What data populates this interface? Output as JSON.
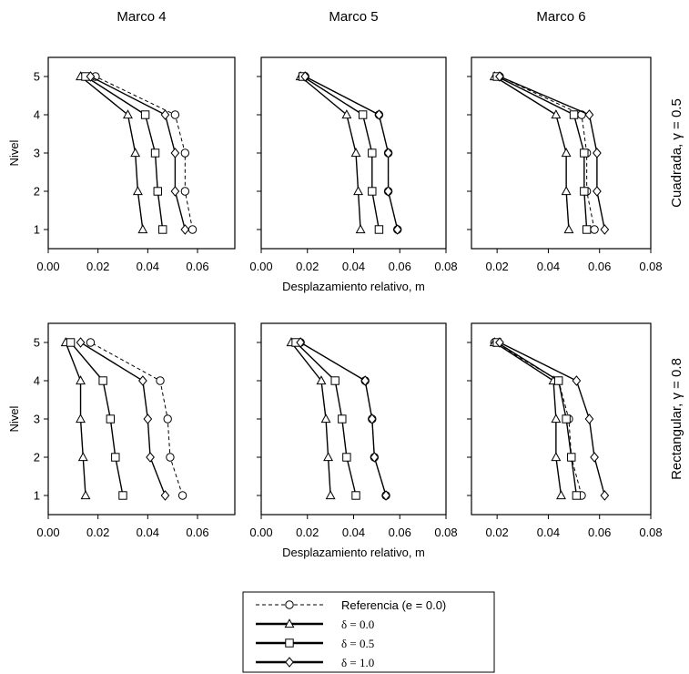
{
  "colors": {
    "line": "#000000",
    "marker_fill": "#ffffff",
    "background": "#ffffff"
  },
  "chart_data": {
    "type": "line",
    "column_titles": [
      "Marco 4",
      "Marco 5",
      "Marco 6"
    ],
    "row_labels": [
      "Cuadrada, γ = 0.5",
      "Rectangular, γ = 0.8"
    ],
    "ylabel": "Nivel",
    "xlabel": "Desplazamiento relativo, m",
    "y_ticks": [
      "1",
      "2",
      "3",
      "4",
      "5"
    ],
    "ylim": [
      0.5,
      5.5
    ],
    "grid": false,
    "legend_position": "bottom-center",
    "series_styles": [
      {
        "name": "Referencia (e = 0.0)",
        "line": "dashed",
        "marker": "circle"
      },
      {
        "name": "δ = 0.0",
        "line": "solid",
        "marker": "triangle"
      },
      {
        "name": "δ = 0.5",
        "line": "solid",
        "marker": "square"
      },
      {
        "name": "δ = 1.0",
        "line": "solid",
        "marker": "diamond"
      }
    ],
    "panels": [
      {
        "row": 0,
        "col": 0,
        "xlim": [
          0,
          0.075
        ],
        "x_ticks": [
          "0.00",
          "0.02",
          "0.04",
          "0.06"
        ],
        "series": [
          {
            "name": "Referencia (e = 0.0)",
            "y": [
              1,
              2,
              3,
              4,
              5
            ],
            "x": [
              0.058,
              0.055,
              0.055,
              0.051,
              0.019
            ]
          },
          {
            "name": "δ = 0.0",
            "y": [
              1,
              2,
              3,
              4,
              5
            ],
            "x": [
              0.038,
              0.036,
              0.035,
              0.032,
              0.013
            ]
          },
          {
            "name": "δ = 0.5",
            "y": [
              1,
              2,
              3,
              4,
              5
            ],
            "x": [
              0.046,
              0.044,
              0.043,
              0.039,
              0.015
            ]
          },
          {
            "name": "δ = 1.0",
            "y": [
              1,
              2,
              3,
              4,
              5
            ],
            "x": [
              0.055,
              0.051,
              0.051,
              0.047,
              0.017
            ]
          }
        ]
      },
      {
        "row": 0,
        "col": 1,
        "xlim": [
          0,
          0.08
        ],
        "x_ticks": [
          "0.00",
          "0.02",
          "0.04",
          "0.06",
          "0.08"
        ],
        "series": [
          {
            "name": "Referencia (e = 0.0)",
            "y": [
              1,
              2,
              3,
              4,
              5
            ],
            "x": [
              0.059,
              0.055,
              0.055,
              0.051,
              0.019
            ]
          },
          {
            "name": "δ = 0.0",
            "y": [
              1,
              2,
              3,
              4,
              5
            ],
            "x": [
              0.043,
              0.042,
              0.041,
              0.037,
              0.017
            ]
          },
          {
            "name": "δ = 0.5",
            "y": [
              1,
              2,
              3,
              4,
              5
            ],
            "x": [
              0.051,
              0.048,
              0.048,
              0.044,
              0.018
            ]
          },
          {
            "name": "δ = 1.0",
            "y": [
              1,
              2,
              3,
              4,
              5
            ],
            "x": [
              0.059,
              0.055,
              0.055,
              0.051,
              0.019
            ]
          }
        ]
      },
      {
        "row": 0,
        "col": 2,
        "xlim": [
          0.01,
          0.08
        ],
        "x_ticks": [
          "0.02",
          "0.04",
          "0.06",
          "0.08"
        ],
        "series": [
          {
            "name": "Referencia (e = 0.0)",
            "y": [
              1,
              2,
              3,
              4,
              5
            ],
            "x": [
              0.058,
              0.055,
              0.055,
              0.053,
              0.021
            ]
          },
          {
            "name": "δ = 0.0",
            "y": [
              1,
              2,
              3,
              4,
              5
            ],
            "x": [
              0.048,
              0.047,
              0.047,
              0.043,
              0.019
            ]
          },
          {
            "name": "δ = 0.5",
            "y": [
              1,
              2,
              3,
              4,
              5
            ],
            "x": [
              0.055,
              0.054,
              0.054,
              0.05,
              0.02
            ]
          },
          {
            "name": "δ = 1.0",
            "y": [
              1,
              2,
              3,
              4,
              5
            ],
            "x": [
              0.062,
              0.059,
              0.059,
              0.056,
              0.021
            ]
          }
        ]
      },
      {
        "row": 1,
        "col": 0,
        "xlim": [
          0,
          0.075
        ],
        "x_ticks": [
          "0.00",
          "0.02",
          "0.04",
          "0.06"
        ],
        "series": [
          {
            "name": "Referencia (e = 0.0)",
            "y": [
              1,
              2,
              3,
              4,
              5
            ],
            "x": [
              0.054,
              0.049,
              0.048,
              0.045,
              0.017
            ]
          },
          {
            "name": "δ = 0.0",
            "y": [
              1,
              2,
              3,
              4,
              5
            ],
            "x": [
              0.015,
              0.014,
              0.013,
              0.013,
              0.007
            ]
          },
          {
            "name": "δ = 0.5",
            "y": [
              1,
              2,
              3,
              4,
              5
            ],
            "x": [
              0.03,
              0.027,
              0.025,
              0.022,
              0.009
            ]
          },
          {
            "name": "δ = 1.0",
            "y": [
              1,
              2,
              3,
              4,
              5
            ],
            "x": [
              0.047,
              0.041,
              0.04,
              0.038,
              0.013
            ]
          }
        ]
      },
      {
        "row": 1,
        "col": 1,
        "xlim": [
          0,
          0.08
        ],
        "x_ticks": [
          "0.00",
          "0.02",
          "0.04",
          "0.06",
          "0.08"
        ],
        "series": [
          {
            "name": "Referencia (e = 0.0)",
            "y": [
              1,
              2,
              3,
              4,
              5
            ],
            "x": [
              0.054,
              0.049,
              0.048,
              0.045,
              0.017
            ]
          },
          {
            "name": "δ = 0.0",
            "y": [
              1,
              2,
              3,
              4,
              5
            ],
            "x": [
              0.03,
              0.029,
              0.028,
              0.026,
              0.013
            ]
          },
          {
            "name": "δ = 0.5",
            "y": [
              1,
              2,
              3,
              4,
              5
            ],
            "x": [
              0.041,
              0.037,
              0.035,
              0.032,
              0.015
            ]
          },
          {
            "name": "δ = 1.0",
            "y": [
              1,
              2,
              3,
              4,
              5
            ],
            "x": [
              0.054,
              0.049,
              0.048,
              0.045,
              0.017
            ]
          }
        ]
      },
      {
        "row": 1,
        "col": 2,
        "xlim": [
          0.01,
          0.08
        ],
        "x_ticks": [
          "0.02",
          "0.04",
          "0.06",
          "0.08"
        ],
        "series": [
          {
            "name": "Referencia (e = 0.0)",
            "y": [
              1,
              2,
              3,
              4,
              5
            ],
            "x": [
              0.053,
              0.049,
              0.048,
              0.044,
              0.019
            ]
          },
          {
            "name": "δ = 0.0",
            "y": [
              1,
              2,
              3,
              4,
              5
            ],
            "x": [
              0.045,
              0.043,
              0.043,
              0.042,
              0.019
            ]
          },
          {
            "name": "δ = 0.5",
            "y": [
              1,
              2,
              3,
              4,
              5
            ],
            "x": [
              0.051,
              0.049,
              0.047,
              0.044,
              0.02
            ]
          },
          {
            "name": "δ = 1.0",
            "y": [
              1,
              2,
              3,
              4,
              5
            ],
            "x": [
              0.062,
              0.058,
              0.056,
              0.051,
              0.021
            ]
          }
        ]
      }
    ]
  }
}
